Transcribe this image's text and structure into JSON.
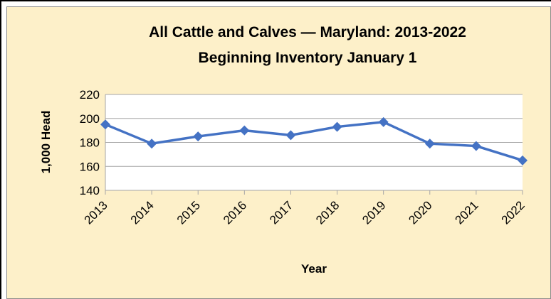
{
  "chart_data": {
    "type": "line",
    "title": "All Cattle and Calves — Maryland: 2013-2022",
    "subtitle": "Beginning Inventory January 1",
    "xlabel": "Year",
    "ylabel": "1,000 Head",
    "categories": [
      "2013",
      "2014",
      "2015",
      "2016",
      "2017",
      "2018",
      "2019",
      "2020",
      "2021",
      "2022"
    ],
    "series": [
      {
        "values": [
          195,
          179,
          185,
          190,
          186,
          193,
          197,
          179,
          177,
          165
        ]
      }
    ],
    "ylim": [
      140,
      220
    ],
    "yticks": [
      140,
      160,
      180,
      200,
      220
    ],
    "grid": true,
    "colors": {
      "line": "#4472c4",
      "plot_bg": "#ffffff",
      "panel_bg": "#fdf0c9",
      "grid": "#a6a6a6"
    }
  }
}
